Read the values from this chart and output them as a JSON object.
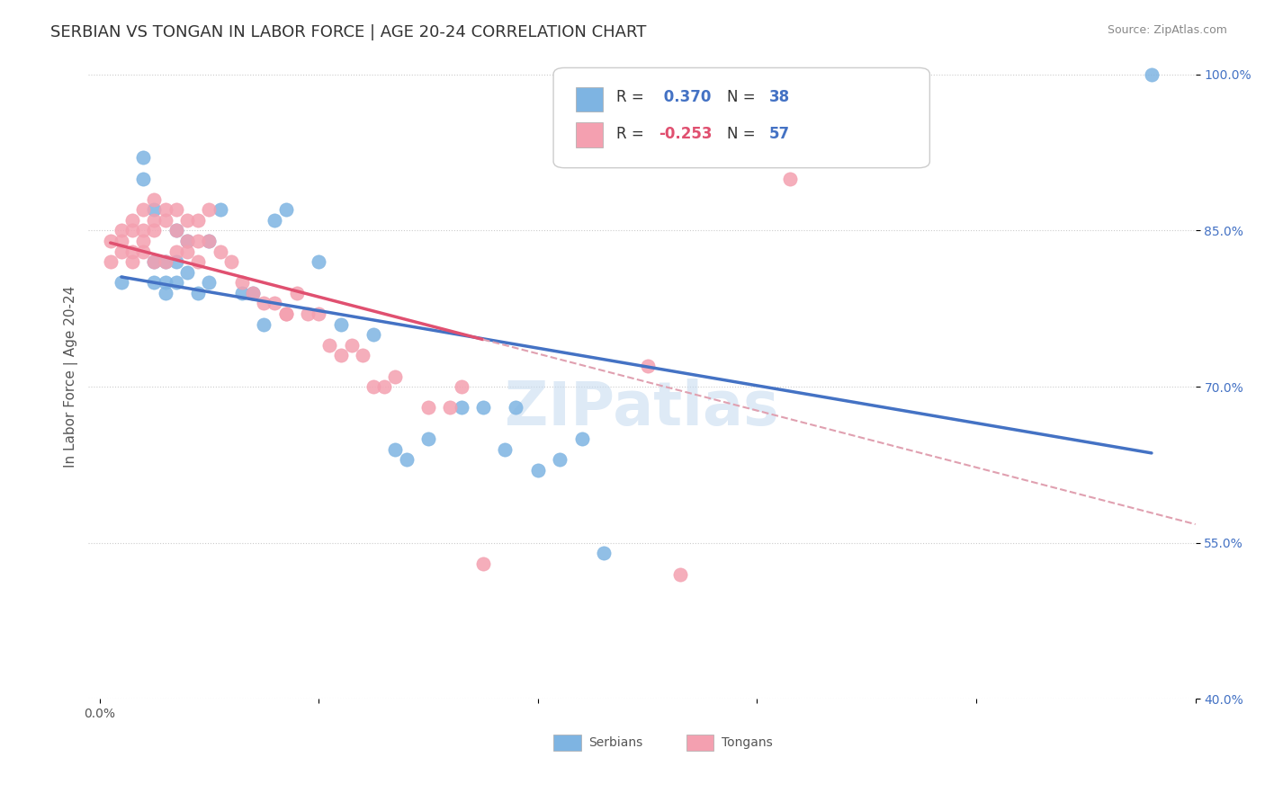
{
  "title": "SERBIAN VS TONGAN IN LABOR FORCE | AGE 20-24 CORRELATION CHART",
  "source": "Source: ZipAtlas.com",
  "ylabel": "In Labor Force | Age 20-24",
  "xlim": [
    -0.01,
    1.0
  ],
  "ylim": [
    0.4,
    1.02
  ],
  "yticks": [
    0.4,
    0.55,
    0.7,
    0.85,
    1.0
  ],
  "ytick_labels": [
    "40.0%",
    "55.0%",
    "70.0%",
    "85.0%",
    "100.0%"
  ],
  "xticks": [
    0.0,
    0.2,
    0.4,
    0.6,
    0.8,
    1.0
  ],
  "xtick_labels": [
    "0.0%",
    "",
    "",
    "",
    "",
    ""
  ],
  "serbian_color": "#7EB4E2",
  "tongan_color": "#F4A0B0",
  "serbian_line_color": "#4472C4",
  "tongan_line_color": "#E05070",
  "tongan_dash_color": "#E0A0B0",
  "background_color": "#FFFFFF",
  "watermark": "ZIPatlas",
  "legend_r_serbian": "R = ",
  "legend_v_serbian": " 0.370",
  "legend_n_label": "N = ",
  "legend_n_serbian": "38",
  "legend_r_tongan": "R = ",
  "legend_v_tongan": "-0.253",
  "legend_n_tongan": "57",
  "serbian_x": [
    0.02,
    0.04,
    0.04,
    0.05,
    0.05,
    0.05,
    0.06,
    0.06,
    0.06,
    0.07,
    0.07,
    0.07,
    0.08,
    0.08,
    0.09,
    0.1,
    0.1,
    0.11,
    0.13,
    0.14,
    0.15,
    0.16,
    0.17,
    0.2,
    0.22,
    0.25,
    0.27,
    0.28,
    0.3,
    0.33,
    0.35,
    0.37,
    0.38,
    0.4,
    0.42,
    0.44,
    0.46,
    0.96
  ],
  "serbian_y": [
    0.8,
    0.92,
    0.9,
    0.87,
    0.82,
    0.8,
    0.82,
    0.8,
    0.79,
    0.85,
    0.82,
    0.8,
    0.84,
    0.81,
    0.79,
    0.84,
    0.8,
    0.87,
    0.79,
    0.79,
    0.76,
    0.86,
    0.87,
    0.82,
    0.76,
    0.75,
    0.64,
    0.63,
    0.65,
    0.68,
    0.68,
    0.64,
    0.68,
    0.62,
    0.63,
    0.65,
    0.54,
    1.0
  ],
  "tongan_x": [
    0.01,
    0.01,
    0.02,
    0.02,
    0.02,
    0.03,
    0.03,
    0.03,
    0.03,
    0.04,
    0.04,
    0.04,
    0.04,
    0.05,
    0.05,
    0.05,
    0.05,
    0.06,
    0.06,
    0.06,
    0.07,
    0.07,
    0.07,
    0.08,
    0.08,
    0.08,
    0.09,
    0.09,
    0.09,
    0.1,
    0.1,
    0.11,
    0.12,
    0.13,
    0.14,
    0.15,
    0.16,
    0.17,
    0.17,
    0.18,
    0.19,
    0.2,
    0.21,
    0.22,
    0.23,
    0.24,
    0.25,
    0.26,
    0.27,
    0.3,
    0.32,
    0.33,
    0.35,
    0.5,
    0.53,
    0.6,
    0.63
  ],
  "tongan_y": [
    0.84,
    0.82,
    0.85,
    0.84,
    0.83,
    0.86,
    0.85,
    0.83,
    0.82,
    0.87,
    0.85,
    0.84,
    0.83,
    0.88,
    0.86,
    0.85,
    0.82,
    0.87,
    0.86,
    0.82,
    0.87,
    0.85,
    0.83,
    0.86,
    0.84,
    0.83,
    0.86,
    0.84,
    0.82,
    0.87,
    0.84,
    0.83,
    0.82,
    0.8,
    0.79,
    0.78,
    0.78,
    0.77,
    0.77,
    0.79,
    0.77,
    0.77,
    0.74,
    0.73,
    0.74,
    0.73,
    0.7,
    0.7,
    0.71,
    0.68,
    0.68,
    0.7,
    0.53,
    0.72,
    0.52,
    0.93,
    0.9
  ],
  "title_fontsize": 13,
  "axis_label_fontsize": 11,
  "tick_fontsize": 10,
  "source_fontsize": 9,
  "legend_fontsize": 12
}
